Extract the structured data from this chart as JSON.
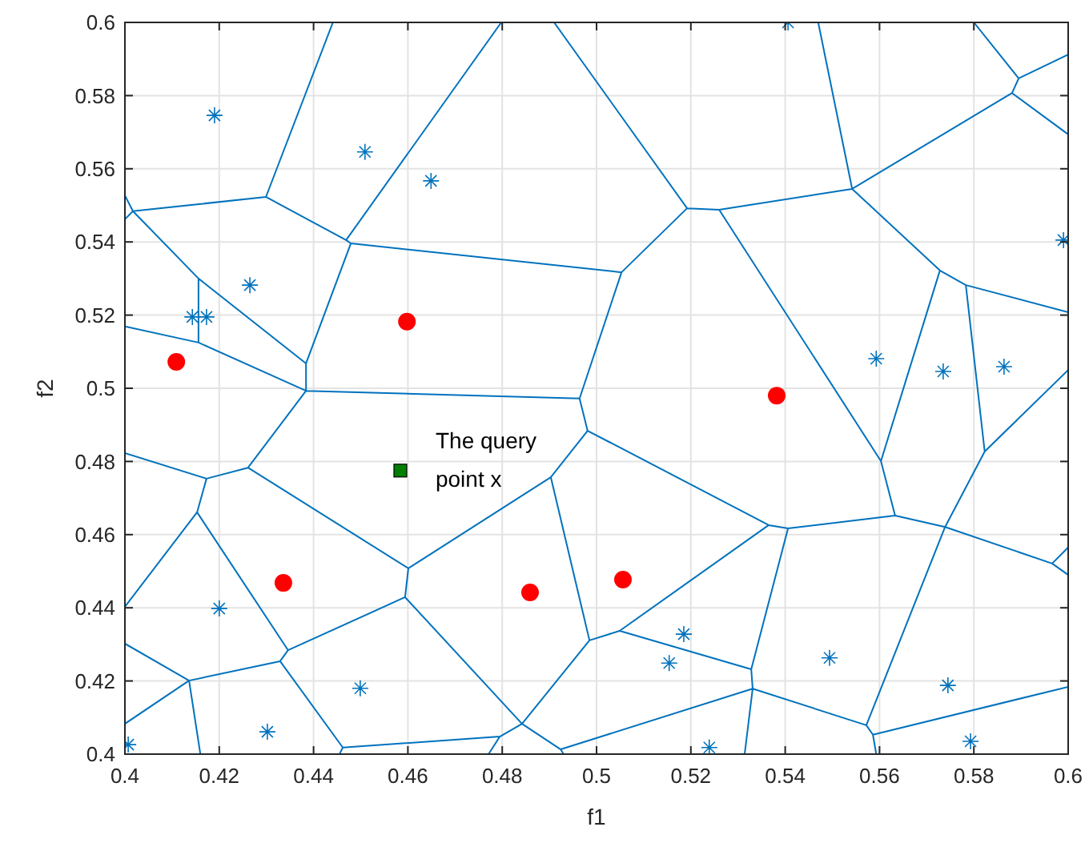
{
  "chart_data": {
    "type": "scatter",
    "xlabel": "f1",
    "ylabel": "f2",
    "xlim": [
      0.4,
      0.6
    ],
    "ylim": [
      0.4,
      0.6
    ],
    "xticks": [
      0.4,
      0.42,
      0.44,
      0.46,
      0.48,
      0.5,
      0.52,
      0.54,
      0.56,
      0.58,
      0.6
    ],
    "yticks": [
      0.4,
      0.42,
      0.44,
      0.46,
      0.48,
      0.5,
      0.52,
      0.54,
      0.56,
      0.58,
      0.6
    ],
    "grid": true,
    "annotations": [
      {
        "text": "The query\npoint x",
        "x": 0.4584,
        "y": 0.4775
      }
    ],
    "series": [
      {
        "type": "line",
        "color": "#0072bd",
        "marker": "none",
        "line_style": "solid",
        "x": [
          0.4,
          0.4017,
          0.4299,
          0.4441,
          null,
          0.4,
          0.4017,
          null,
          0.4299,
          0.4469,
          0.4798,
          null,
          0.4469,
          0.4479,
          0.5053,
          0.5192,
          0.491,
          null,
          0.4479,
          0.4384,
          0.4384,
          0.4964,
          0.5053,
          null,
          0.4017,
          0.4156,
          0.4384,
          null,
          0.4156,
          0.4156,
          0.4,
          null,
          0.4156,
          0.4384,
          null,
          0.5192,
          0.526,
          0.5542,
          0.547,
          null,
          0.526,
          0.5603,
          0.5633,
          0.5406,
          0.5365,
          0.4981,
          0.4964,
          null,
          0.5542,
          0.5881,
          0.5895,
          0.58,
          null,
          0.5895,
          0.6,
          null,
          0.5881,
          0.6,
          null,
          0.5542,
          0.5728,
          0.5783,
          0.6,
          null,
          0.5728,
          0.5603,
          null,
          0.5783,
          0.5823,
          0.6,
          null,
          0.5823,
          0.5739,
          0.5572,
          0.5586,
          0.5593,
          null,
          0.5633,
          0.5739,
          0.5966,
          0.6,
          null,
          0.5966,
          0.6,
          null,
          0.5586,
          0.6,
          null,
          0.5365,
          0.5049,
          0.5328,
          0.5406,
          null,
          0.5328,
          0.5331,
          0.5314,
          null,
          0.4924,
          0.5331,
          0.5572,
          null,
          0.4981,
          0.4903,
          0.4985,
          0.5049,
          null,
          0.4903,
          0.4601,
          0.4261,
          0.4384,
          null,
          0.4601,
          0.4594,
          0.4842,
          0.4985,
          null,
          0.4842,
          0.4924,
          0.493,
          null,
          0.4842,
          0.4795,
          0.4771,
          null,
          0.4795,
          0.4462,
          0.4455,
          null,
          0.4462,
          0.4329,
          0.4136,
          0.4,
          null,
          0.4136,
          0.4,
          null,
          0.4136,
          0.416,
          null,
          0.4329,
          0.4346,
          0.4594,
          null,
          0.4346,
          0.4153,
          0.4173,
          0.4261,
          null,
          0.4173,
          0.4,
          null,
          0.4153,
          0.4
        ],
        "values": [
          0.5527,
          0.5484,
          0.5523,
          0.6,
          null,
          0.5462,
          0.5484,
          null,
          0.5523,
          0.5405,
          0.6,
          null,
          0.5405,
          0.5396,
          0.5317,
          0.5492,
          0.6,
          null,
          0.5396,
          0.5068,
          0.4993,
          0.4972,
          0.5317,
          null,
          0.5484,
          0.53,
          0.5068,
          null,
          0.53,
          0.5125,
          0.5169,
          null,
          0.5125,
          0.4993,
          null,
          0.5492,
          0.5488,
          0.5545,
          0.6,
          null,
          0.5488,
          0.4801,
          0.4652,
          0.4617,
          0.4626,
          0.4884,
          0.4972,
          null,
          0.5545,
          0.5807,
          0.5847,
          0.6,
          null,
          0.5847,
          0.5912,
          null,
          0.5807,
          0.5694,
          null,
          0.5545,
          0.5322,
          0.5282,
          0.5208,
          null,
          0.5322,
          0.4801,
          null,
          0.5282,
          0.4827,
          0.505,
          null,
          0.4827,
          0.4621,
          0.4079,
          0.4053,
          0.4,
          null,
          0.4652,
          0.4621,
          0.4521,
          0.4565,
          null,
          0.4521,
          0.449,
          null,
          0.4053,
          0.4184,
          null,
          0.4626,
          0.4337,
          0.4232,
          0.4617,
          null,
          0.4232,
          0.4179,
          0.4,
          null,
          0.4013,
          0.4179,
          0.4079,
          null,
          0.4884,
          0.4757,
          0.4311,
          0.4337,
          null,
          0.4757,
          0.4508,
          0.4783,
          0.4993,
          null,
          0.4508,
          0.4429,
          0.4083,
          0.4311,
          null,
          0.4083,
          0.4013,
          0.4,
          null,
          0.4083,
          0.4048,
          0.4,
          null,
          0.4048,
          0.4018,
          0.4,
          null,
          0.4018,
          0.4254,
          0.4201,
          0.4302,
          null,
          0.4201,
          0.4083,
          null,
          0.4201,
          0.4,
          null,
          0.4254,
          0.4284,
          0.4429,
          null,
          0.4284,
          0.4661,
          0.4753,
          0.4783,
          null,
          0.4753,
          0.4823,
          null,
          0.4661,
          0.4403
        ]
      },
      {
        "color": "#0072bd",
        "marker": "cross",
        "x": [
          0.419,
          0.4509,
          0.4649,
          0.4265,
          0.4143,
          0.4173,
          0.5406,
          0.5593,
          0.5735,
          0.5864,
          0.599,
          0.42,
          0.5154,
          0.5185,
          0.5494,
          0.5745,
          0.5793,
          0.4499,
          0.4302,
          0.4007,
          0.5239
        ],
        "values": [
          0.5746,
          0.5646,
          0.5567,
          0.5282,
          0.5195,
          0.5195,
          0.6,
          0.5081,
          0.5046,
          0.5059,
          0.5405,
          0.4398,
          0.4249,
          0.4328,
          0.4263,
          0.4188,
          0.4035,
          0.418,
          0.4061,
          0.4026,
          0.4018
        ]
      },
      {
        "color": "#ff0000",
        "marker": "circle",
        "x": [
          0.4109,
          0.4598,
          0.4336,
          0.4859,
          0.5056,
          0.5382
        ],
        "values": [
          0.5072,
          0.5182,
          0.4468,
          0.4442,
          0.4477,
          0.498
        ]
      },
      {
        "color": "#008000",
        "marker": "square",
        "x": [
          0.4584
        ],
        "values": [
          0.4775
        ]
      }
    ]
  }
}
